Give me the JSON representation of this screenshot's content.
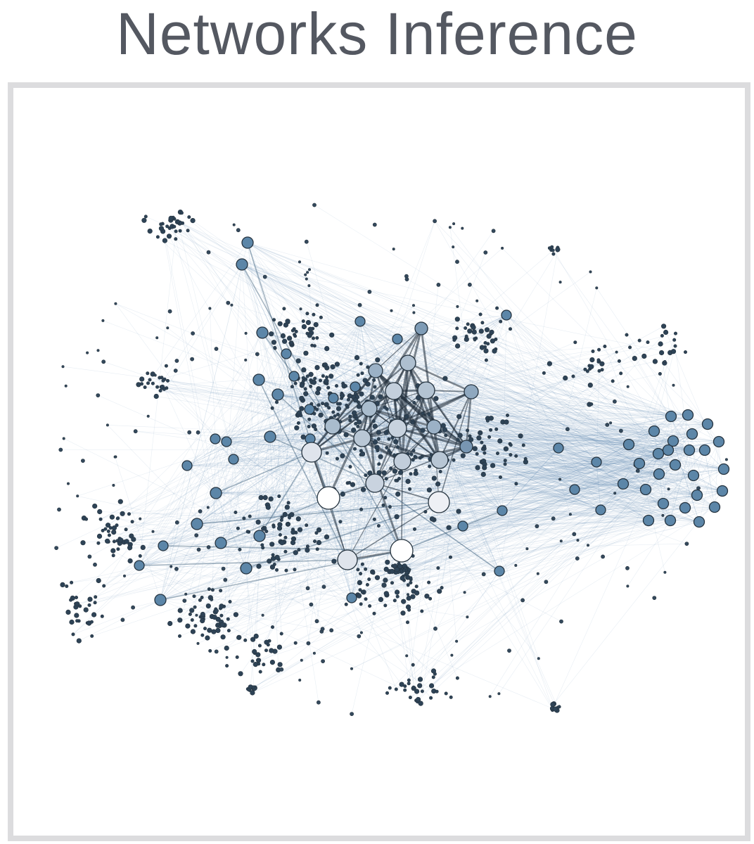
{
  "title": "Networks Inference",
  "colors": {
    "background": "#ffffff",
    "frame_border": "#dcdcde",
    "title_text": "#545861",
    "edge_light": "#4a7ea8",
    "edge_strong": "#1e2a36",
    "node_small": "#2b3f52",
    "node_mid": "#5a84a6",
    "node_hub": "#ffffff",
    "node_stroke": "#25333f"
  }
}
